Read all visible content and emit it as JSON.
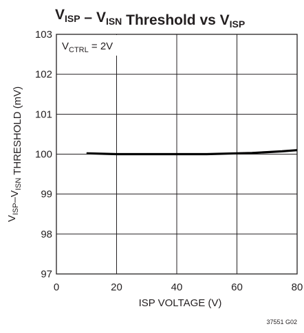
{
  "chart_data": {
    "type": "line",
    "title": {
      "parts": [
        {
          "text": "V",
          "sub": "ISP"
        },
        {
          "text": " – V",
          "sub": "ISN"
        },
        {
          "text": " Threshold vs V",
          "sub": "ISP"
        }
      ]
    },
    "xlabel": "ISP VOLTAGE (V)",
    "ylabel": {
      "parts": [
        {
          "text": "V",
          "sub": "ISP"
        },
        {
          "text": "–V",
          "sub": "ISN"
        },
        {
          "text": " THRESHOLD (mV)",
          "sub": ""
        }
      ]
    },
    "xlim": [
      0,
      80
    ],
    "ylim": [
      97,
      103
    ],
    "x_ticks": [
      0,
      20,
      40,
      60,
      80
    ],
    "y_ticks": [
      97,
      98,
      99,
      100,
      101,
      102,
      103
    ],
    "grid": true,
    "annotation": {
      "text": "V",
      "sub": "CTRL",
      "suffix": " = 2V"
    },
    "series": [
      {
        "x": [
          10,
          20,
          30,
          40,
          50,
          60,
          65,
          70,
          75,
          80
        ],
        "y": [
          100.02,
          100.0,
          100.0,
          100.0,
          100.0,
          100.02,
          100.03,
          100.05,
          100.07,
          100.1
        ]
      }
    ]
  },
  "figure_note": "37551 G02"
}
